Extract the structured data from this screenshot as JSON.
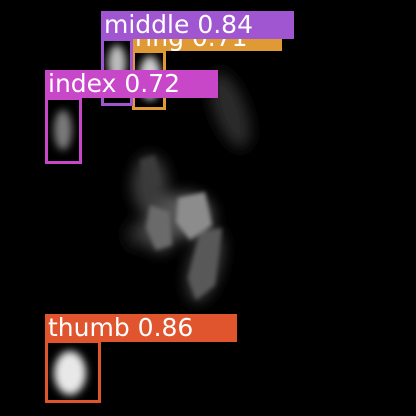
{
  "detections": [
    {
      "label": "ring",
      "score": "0.71",
      "color": "#e09a35"
    },
    {
      "label": "middle",
      "score": "0.84",
      "color": "#a055d1"
    },
    {
      "label": "index",
      "score": "0.72",
      "color": "#c846c8"
    },
    {
      "label": "thumb",
      "score": "0.86",
      "color": "#e0552d"
    }
  ]
}
